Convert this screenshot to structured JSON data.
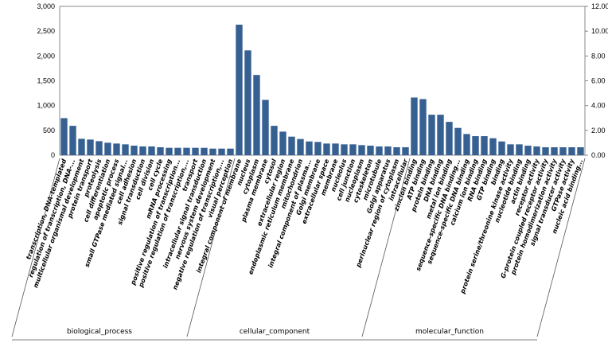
{
  "chart_data": {
    "type": "bar",
    "title": "",
    "xlabel": "",
    "ylabel": "",
    "ylim": [
      0,
      3000
    ],
    "y_ticks": [
      "0",
      "500",
      "1,000",
      "1,500",
      "2,000",
      "2,500",
      "3,000"
    ],
    "y2lim": [
      0,
      12
    ],
    "y2_ticks": [
      "0.00",
      "2.00",
      "4.00",
      "6.00",
      "8.00",
      "10.00",
      "12.00"
    ],
    "grid": false,
    "bar_color": "#376092",
    "groups": [
      {
        "name": "biological_process",
        "categories": [
          "transcription, DNA-templated",
          "regulation of transcription, DNA-...",
          "multicellular organismal development",
          "protein transport",
          "proteolysis",
          "cell differentiation",
          "apoptotic process",
          "small GTPase mediated signal...",
          "cell adhesion",
          "signal transduction",
          "cell division",
          "cell cycle",
          "mRNA processing",
          "positive regulation of transcription...",
          "positive regulation of transcription,...",
          "transport",
          "intracellular signal transduction",
          "nervous system development",
          "negative regulation of transcription,...",
          "visual perception"
        ],
        "values": [
          747,
          592,
          331,
          315,
          283,
          251,
          235,
          219,
          192,
          176,
          176,
          160,
          149,
          149,
          149,
          149,
          149,
          133,
          133,
          133
        ]
      },
      {
        "name": "cellular_component",
        "categories": [
          "integral component of membrane",
          "nucleus",
          "cytoplasm",
          "plasma membrane",
          "cytosol",
          "extracellular region",
          "endoplasmic reticulum membrane",
          "mitochondrion",
          "integral component of plasma...",
          "Golgi membrane",
          "extracellular space",
          "membrane",
          "nucleolus",
          "cell junction",
          "nucleoplasm",
          "cytoskeleton",
          "microtubule",
          "Golgi apparatus",
          "perinuclear region of cytoplasm",
          "intracellular"
        ],
        "values": [
          2631,
          2113,
          1617,
          1115,
          592,
          475,
          374,
          326,
          277,
          267,
          235,
          235,
          219,
          219,
          203,
          192,
          176,
          176,
          160,
          160
        ]
      },
      {
        "name": "molecular_function",
        "categories": [
          "zincion binding",
          "ATP binding",
          "protein binding",
          "DNA binding",
          "metal ion binding",
          "sequence-specific DNA binding...",
          "sequence-specific DNA binding",
          "calcium ion binding",
          "RNA binding",
          "GTP binding",
          "binding",
          "protein serine/threonine kinase activity",
          "nucleotide binding",
          "actin binding",
          "receptor activity",
          "G-protein coupled receptor activity",
          "protein homodimerization activity",
          "signal transducer activity",
          "GTPase activity",
          "nucleic acid binding..."
        ],
        "values": [
          1163,
          1131,
          816,
          816,
          672,
          550,
          427,
          384,
          384,
          342,
          277,
          219,
          219,
          192,
          176,
          160,
          160,
          160,
          160,
          160
        ]
      }
    ]
  }
}
